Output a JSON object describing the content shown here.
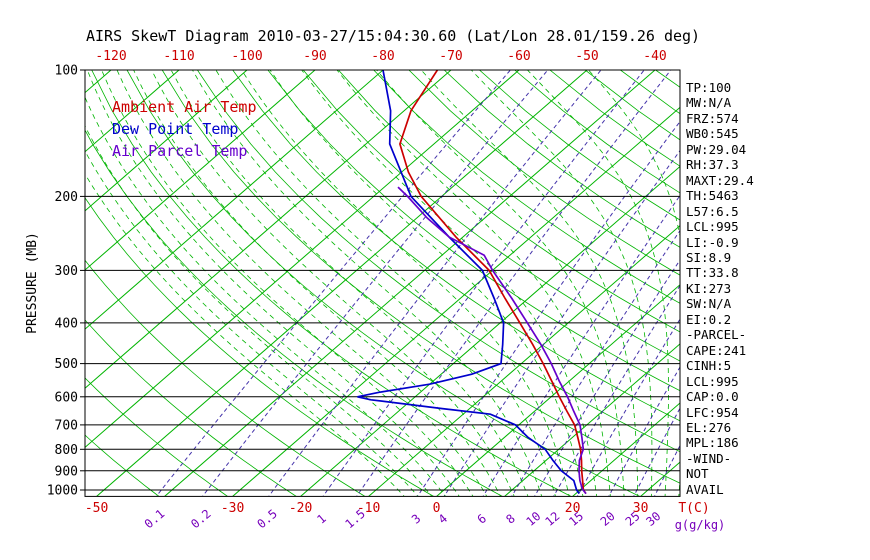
{
  "title": "AIRS SkewT Diagram 2010-03-27/15:04:30.60 (Lat/Lon 28.01/159.26 deg)",
  "colors": {
    "background": "#ffffff",
    "green": "#00b400",
    "red": "#cc0000",
    "blue": "#0000cc",
    "purple": "#6600cc",
    "purple_line": "#4433aa",
    "purple_label": "#7700bb",
    "black": "#000000"
  },
  "legend": [
    {
      "label": "Ambient Air Temp",
      "color": "#cc0000"
    },
    {
      "label": "Dew Point Temp",
      "color": "#0000cc"
    },
    {
      "label": "Air Parcel Temp",
      "color": "#6600cc"
    }
  ],
  "axes": {
    "pressure_label": "PRESSURE (MB)",
    "pressure_ticks": [
      100,
      200,
      300,
      400,
      500,
      600,
      700,
      800,
      900,
      1000
    ],
    "top_temp_ticks": [
      -120,
      -110,
      -100,
      -90,
      -80,
      -70,
      -60,
      -50,
      -40
    ],
    "bottom_temp_ticks": [
      -50,
      -30,
      -20,
      -10,
      0,
      20,
      30
    ],
    "mixing_ratio_ticks": [
      0.1,
      0.2,
      0.5,
      1,
      1.5,
      3,
      4,
      6,
      8,
      10,
      12,
      15,
      20,
      25,
      30
    ],
    "t_unit_label": "T(C)",
    "w_unit_label": "g(g/kg)"
  },
  "stats": [
    "TP:100",
    "MW:N/A",
    "FRZ:574",
    "WB0:545",
    "PW:29.04",
    "RH:37.3",
    "MAXT:29.4",
    "TH:5463",
    "L57:6.5",
    "LCL:995",
    "LI:-0.9",
    "SI:8.9",
    "TT:33.8",
    "KI:273",
    "SW:N/A",
    "EI:0.2",
    "-PARCEL-",
    "CAPE:241",
    "CINH:5",
    "LCL:995",
    "CAP:0.0",
    "LFC:954",
    "EL:276",
    "MPL:186",
    "-WIND-",
    "NOT",
    "AVAIL"
  ],
  "chart_data": {
    "type": "line",
    "title": "AIRS SkewT Diagram 2010-03-27/15:04:30.60 (Lat/Lon 28.01/159.26 deg)",
    "ylabel": "PRESSURE (MB)",
    "xlabel": "T(C)",
    "y_scale": "log",
    "y_range": [
      100,
      1050
    ],
    "x_skew": "skew-T: isotherms slant up-right at ~45deg",
    "grid": "isotherms + dry/moist adiabats + mixing-ratio lines",
    "legend_position": "top-left inside plot",
    "series": [
      {
        "name": "Ambient Air Temp",
        "color": "#cc0000",
        "units": [
          "MB",
          "degC"
        ],
        "points": [
          [
            1020,
            21.5
          ],
          [
            1000,
            20.5
          ],
          [
            950,
            18.8
          ],
          [
            900,
            17.0
          ],
          [
            850,
            15.2
          ],
          [
            800,
            13.2
          ],
          [
            750,
            10.8
          ],
          [
            700,
            8.2
          ],
          [
            650,
            4.8
          ],
          [
            600,
            1.2
          ],
          [
            550,
            -2.6
          ],
          [
            500,
            -6.8
          ],
          [
            450,
            -11.6
          ],
          [
            400,
            -17.1
          ],
          [
            350,
            -23.4
          ],
          [
            300,
            -30.5
          ],
          [
            250,
            -41.0
          ],
          [
            200,
            -53.0
          ],
          [
            175,
            -59.0
          ],
          [
            150,
            -65.0
          ],
          [
            125,
            -69.0
          ],
          [
            100,
            -72.0
          ]
        ]
      },
      {
        "name": "Dew Point Temp",
        "color": "#0000cc",
        "units": [
          "MB",
          "degC"
        ],
        "points": [
          [
            1020,
            20.5
          ],
          [
            1000,
            19.5
          ],
          [
            950,
            17.5
          ],
          [
            900,
            14.0
          ],
          [
            850,
            11.0
          ],
          [
            800,
            8.0
          ],
          [
            750,
            3.5
          ],
          [
            700,
            -0.5
          ],
          [
            660,
            -6.0
          ],
          [
            640,
            -14.0
          ],
          [
            610,
            -26.0
          ],
          [
            600,
            -28.5
          ],
          [
            585,
            -26.0
          ],
          [
            560,
            -20.0
          ],
          [
            530,
            -15.5
          ],
          [
            500,
            -13.0
          ],
          [
            450,
            -16.0
          ],
          [
            400,
            -19.5
          ],
          [
            350,
            -25.0
          ],
          [
            300,
            -31.5
          ],
          [
            250,
            -42.0
          ],
          [
            200,
            -54.5
          ],
          [
            150,
            -66.5
          ],
          [
            125,
            -72.0
          ],
          [
            100,
            -80.0
          ]
        ]
      },
      {
        "name": "Air Parcel Temp",
        "color": "#6600cc",
        "units": [
          "MB",
          "degC"
        ],
        "points": [
          [
            1020,
            21.5
          ],
          [
            995,
            20.2
          ],
          [
            950,
            18.4
          ],
          [
            900,
            16.6
          ],
          [
            850,
            14.9
          ],
          [
            800,
            13.6
          ],
          [
            750,
            11.4
          ],
          [
            700,
            9.0
          ],
          [
            650,
            5.8
          ],
          [
            600,
            2.4
          ],
          [
            550,
            -1.5
          ],
          [
            500,
            -5.6
          ],
          [
            450,
            -10.4
          ],
          [
            400,
            -16.0
          ],
          [
            350,
            -22.4
          ],
          [
            300,
            -30.0
          ],
          [
            276,
            -33.8
          ],
          [
            250,
            -42.0
          ],
          [
            225,
            -48.5
          ],
          [
            200,
            -55.0
          ],
          [
            190,
            -58.0
          ]
        ]
      }
    ],
    "isotherms": {
      "min": -160,
      "max": 40,
      "step": 10
    },
    "dry_adiabats": {
      "theta_min": 230,
      "theta_max": 450,
      "step": 10
    },
    "moist_adiabats": {
      "t_min": -4,
      "t_max": 36,
      "step": 2
    },
    "mixing_ratio_lines": [
      0.1,
      0.2,
      0.5,
      1,
      1.5,
      3,
      4,
      6,
      8,
      10,
      12,
      15,
      20,
      25,
      30
    ]
  }
}
